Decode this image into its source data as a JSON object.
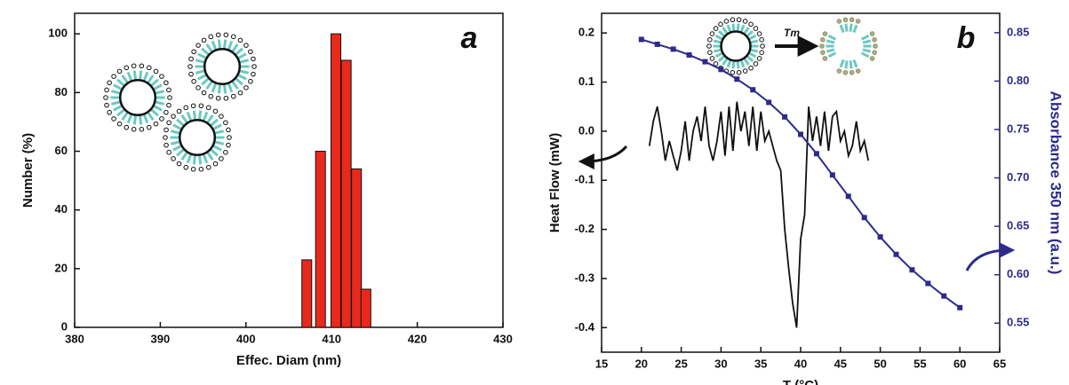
{
  "chart_data": [
    {
      "type": "bar",
      "annotations": [
        "a"
      ],
      "xlabel": "Effec. Diam (nm)",
      "ylabel": "Number (%)",
      "x": [
        407.1,
        408.7,
        410.5,
        411.7,
        412.9,
        414.0
      ],
      "values": [
        23,
        60,
        100,
        91,
        54,
        13
      ],
      "color": "#e8291c",
      "xlim": [
        380,
        430
      ],
      "xticks": [
        380,
        390,
        400,
        410,
        420,
        430
      ],
      "ylim": [
        0,
        107
      ],
      "yticks": [
        0,
        20,
        40,
        60,
        80,
        100
      ]
    },
    {
      "type": "line",
      "annotations": [
        "b",
        "Tm"
      ],
      "xlabel": "T (°C)",
      "ylabel": "Heat Flow (mW)",
      "y2label": "Absorbance 350 nm (a.u.)",
      "xlim": [
        15,
        65
      ],
      "xticks": [
        15,
        20,
        25,
        30,
        35,
        40,
        45,
        50,
        55,
        60,
        65
      ],
      "ylim": [
        -0.45,
        0.24
      ],
      "yticks": [
        -0.4,
        -0.3,
        -0.2,
        -0.1,
        {
          "value": 0,
          "label": "0.0"
        },
        0.1,
        0.2
      ],
      "y2lim": [
        0.52,
        0.87
      ],
      "y2ticks": [
        0.55,
        {
          "value": 0.6,
          "label": "0.60"
        },
        0.65,
        {
          "value": 0.7,
          "label": "0.70"
        },
        0.75,
        {
          "value": 0.8,
          "label": "0.80"
        },
        0.85
      ],
      "y2color": "#2e2a8c",
      "series": [
        {
          "color": "#111111",
          "marker": false,
          "x": [
            21,
            21.5,
            22,
            22.5,
            23,
            23.5,
            24,
            24.5,
            25,
            25.5,
            26,
            26.5,
            27,
            27.5,
            28,
            28.5,
            29,
            29.5,
            30,
            30.5,
            31,
            31.5,
            32,
            32.5,
            33,
            33.5,
            34,
            34.5,
            35,
            35.5,
            36,
            36.5,
            37,
            37.5,
            38,
            38.5,
            39,
            39.5,
            40,
            40.5,
            41,
            41.5,
            42,
            42.5,
            43,
            43.5,
            44,
            44.5,
            45,
            45.5,
            46,
            46.5,
            47,
            47.5,
            48,
            48.5
          ],
          "values": [
            -0.03,
            0.02,
            0.05,
            0.0,
            -0.06,
            -0.02,
            -0.05,
            -0.08,
            -0.04,
            0.02,
            -0.06,
            0.0,
            0.03,
            -0.02,
            0.05,
            -0.03,
            -0.06,
            -0.02,
            0.04,
            -0.05,
            0.05,
            -0.04,
            0.06,
            0.0,
            0.04,
            -0.03,
            0.05,
            -0.04,
            0.04,
            -0.02,
            0.0,
            -0.03,
            -0.06,
            -0.08,
            -0.2,
            -0.28,
            -0.35,
            -0.4,
            -0.22,
            -0.17,
            0.05,
            -0.02,
            0.03,
            -0.03,
            0.04,
            -0.04,
            0.03,
            0.04,
            -0.02,
            0.0,
            -0.05,
            -0.03,
            0.02,
            -0.04,
            -0.02,
            -0.06
          ]
        },
        {
          "color": "#2e2a8c",
          "axis": "y2",
          "marker": true,
          "x": [
            20,
            22,
            24,
            26,
            28,
            30,
            32,
            34,
            36,
            38,
            40,
            42,
            44,
            46,
            48,
            50,
            52,
            54,
            56,
            58,
            60
          ],
          "values": [
            0.843,
            0.838,
            0.833,
            0.827,
            0.82,
            0.812,
            0.802,
            0.791,
            0.778,
            0.763,
            0.745,
            0.725,
            0.703,
            0.681,
            0.659,
            0.639,
            0.621,
            0.605,
            0.591,
            0.578,
            0.566
          ]
        }
      ]
    }
  ]
}
